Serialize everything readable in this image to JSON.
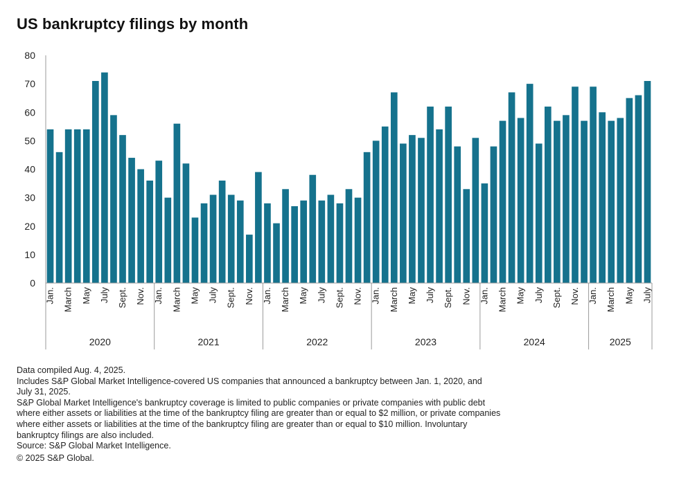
{
  "title": "US bankruptcy filings by month",
  "colors": {
    "bar": "#15728d",
    "axis": "#999999",
    "text": "#222222"
  },
  "chart_data": {
    "type": "bar",
    "title": "US bankruptcy filings by month",
    "xlabel": "",
    "ylabel": "",
    "ylim": [
      0,
      80
    ],
    "yticks": [
      0,
      10,
      20,
      30,
      40,
      50,
      60,
      70,
      80
    ],
    "grid": false,
    "legend": "none",
    "month_labels": [
      "Jan.",
      "",
      "March",
      "",
      "May",
      "",
      "July",
      "",
      "Sept.",
      "",
      "Nov.",
      ""
    ],
    "groups": [
      {
        "year": "2020",
        "months": 12,
        "values": [
          54,
          46,
          54,
          54,
          54,
          71,
          74,
          59,
          52,
          44,
          40,
          36
        ]
      },
      {
        "year": "2021",
        "months": 12,
        "values": [
          43,
          30,
          56,
          42,
          23,
          28,
          31,
          36,
          31,
          29,
          17,
          39
        ]
      },
      {
        "year": "2022",
        "months": 12,
        "values": [
          28,
          21,
          33,
          27,
          29,
          38,
          29,
          31,
          28,
          33,
          30,
          46
        ]
      },
      {
        "year": "2023",
        "months": 12,
        "values": [
          50,
          55,
          67,
          49,
          52,
          51,
          62,
          54,
          62,
          48,
          33,
          51
        ]
      },
      {
        "year": "2024",
        "months": 12,
        "values": [
          35,
          48,
          57,
          67,
          58,
          70,
          49,
          62,
          57,
          59,
          69,
          57
        ]
      },
      {
        "year": "2025",
        "months": 7,
        "values": [
          69,
          60,
          57,
          58,
          65,
          66,
          71
        ]
      }
    ]
  },
  "notes": {
    "compiled": "Data compiled Aug. 4, 2025.",
    "includes_1": "Includes S&P Global Market Intelligence-covered US companies that announced a bankruptcy between Jan. 1, 2020, and",
    "includes_2": "July 31, 2025.",
    "coverage_1": "S&P Global Market Intelligence's bankruptcy coverage is limited to public companies or private companies with public debt",
    "coverage_2": "where either assets or liabilities at the time of the bankruptcy filing are greater than or equal to $2 million, or private companies",
    "coverage_3": "where either assets or liabilities at the time of the bankruptcy filing are greater than or equal to $10 million. Involuntary",
    "coverage_4": "bankruptcy filings are also included.",
    "source": "Source: S&P Global Market Intelligence.",
    "copyright": "© 2025 S&P Global."
  }
}
